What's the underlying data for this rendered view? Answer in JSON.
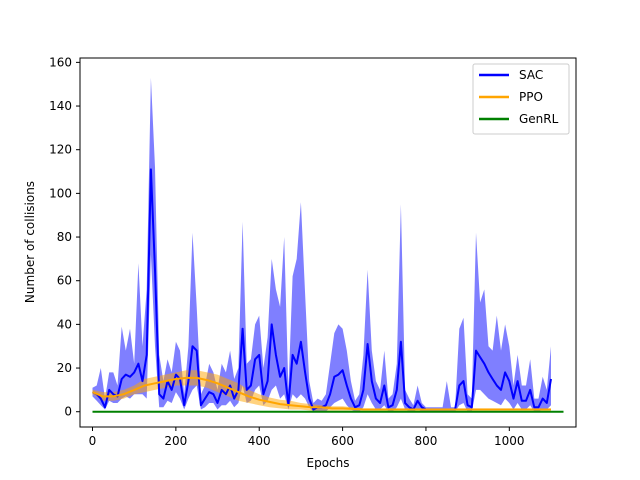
{
  "chart_data": {
    "type": "line",
    "xlabel": "Epochs",
    "ylabel": "Number of collisions",
    "xlim": [
      -30,
      1160
    ],
    "ylim": [
      -7,
      162
    ],
    "xticks": [
      0,
      200,
      400,
      600,
      800,
      1000
    ],
    "yticks": [
      0,
      20,
      40,
      60,
      80,
      100,
      120,
      140,
      160
    ],
    "legend_position": "top-right",
    "grid": false,
    "series": [
      {
        "name": "SAC",
        "color": "#0000ff",
        "band_color": "#0000ff",
        "x": [
          0,
          10,
          20,
          30,
          40,
          50,
          60,
          70,
          80,
          90,
          100,
          110,
          120,
          130,
          140,
          150,
          160,
          170,
          180,
          190,
          200,
          210,
          220,
          230,
          240,
          250,
          260,
          270,
          280,
          290,
          300,
          310,
          320,
          330,
          340,
          350,
          360,
          370,
          380,
          390,
          400,
          410,
          420,
          430,
          440,
          450,
          460,
          470,
          480,
          490,
          500,
          510,
          520,
          530,
          540,
          550,
          560,
          570,
          580,
          590,
          600,
          610,
          620,
          630,
          640,
          650,
          660,
          670,
          680,
          690,
          700,
          710,
          720,
          730,
          740,
          750,
          760,
          770,
          780,
          790,
          800,
          810,
          820,
          830,
          840,
          850,
          860,
          870,
          880,
          890,
          900,
          910,
          920,
          930,
          940,
          950,
          960,
          970,
          980,
          990,
          1000,
          1010,
          1020,
          1030,
          1040,
          1050,
          1060,
          1070,
          1080,
          1090,
          1100
        ],
        "mean": [
          9,
          8,
          6,
          2,
          10,
          8,
          7,
          15,
          17,
          16,
          18,
          22,
          14,
          26,
          111,
          65,
          8,
          6,
          14,
          10,
          17,
          15,
          3,
          14,
          30,
          28,
          3,
          6,
          9,
          8,
          4,
          10,
          8,
          12,
          6,
          10,
          38,
          10,
          12,
          24,
          26,
          8,
          14,
          40,
          26,
          16,
          20,
          3,
          26,
          22,
          32,
          18,
          6,
          1,
          2,
          2,
          3,
          8,
          16,
          17,
          19,
          12,
          6,
          2,
          3,
          10,
          31,
          14,
          6,
          4,
          12,
          2,
          3,
          10,
          32,
          4,
          2,
          1,
          5,
          2,
          1,
          1,
          1,
          1,
          1,
          1,
          1,
          1,
          12,
          14,
          3,
          2,
          28,
          25,
          22,
          18,
          15,
          12,
          10,
          18,
          14,
          6,
          14,
          5,
          5,
          10,
          2,
          2,
          6,
          4,
          15
        ],
        "lower": [
          7,
          5,
          3,
          1,
          5,
          4,
          4,
          6,
          7,
          6,
          8,
          8,
          8,
          6,
          72,
          30,
          2,
          2,
          5,
          4,
          9,
          6,
          1,
          6,
          10,
          12,
          1,
          2,
          4,
          4,
          1,
          3,
          3,
          5,
          2,
          4,
          12,
          4,
          5,
          10,
          12,
          3,
          5,
          10,
          12,
          6,
          8,
          1,
          8,
          6,
          8,
          6,
          2,
          0,
          0,
          0,
          0,
          2,
          4,
          5,
          6,
          3,
          1,
          0,
          0,
          2,
          8,
          4,
          1,
          1,
          3,
          0,
          0,
          2,
          6,
          1,
          0,
          0,
          1,
          0,
          0,
          0,
          0,
          0,
          0,
          0,
          0,
          0,
          3,
          4,
          0,
          0,
          10,
          10,
          8,
          6,
          5,
          4,
          3,
          6,
          4,
          1,
          4,
          1,
          1,
          3,
          0,
          0,
          1,
          1,
          3
        ],
        "upper": [
          11,
          12,
          20,
          6,
          18,
          18,
          12,
          39,
          28,
          38,
          22,
          68,
          30,
          56,
          153,
          112,
          26,
          14,
          24,
          18,
          32,
          28,
          8,
          30,
          82,
          48,
          8,
          12,
          22,
          18,
          10,
          22,
          18,
          28,
          15,
          20,
          87,
          22,
          24,
          40,
          44,
          20,
          34,
          70,
          56,
          48,
          80,
          10,
          62,
          70,
          96,
          54,
          14,
          4,
          6,
          5,
          8,
          22,
          36,
          40,
          38,
          28,
          14,
          5,
          8,
          26,
          65,
          28,
          14,
          10,
          28,
          6,
          8,
          22,
          95,
          10,
          6,
          3,
          12,
          4,
          2,
          2,
          2,
          2,
          2,
          14,
          2,
          2,
          38,
          43,
          8,
          6,
          82,
          50,
          56,
          30,
          28,
          44,
          28,
          40,
          30,
          12,
          26,
          12,
          12,
          24,
          6,
          6,
          16,
          10,
          30
        ]
      },
      {
        "name": "PPO",
        "color": "#ffa500",
        "band_color": "#ffa500",
        "x": [
          0,
          25,
          50,
          75,
          100,
          125,
          150,
          175,
          200,
          225,
          250,
          275,
          300,
          325,
          350,
          375,
          400,
          425,
          450,
          475,
          500,
          525,
          550,
          575,
          600,
          650,
          700,
          750,
          800,
          850,
          900,
          950,
          1000,
          1050,
          1100
        ],
        "mean": [
          9,
          7,
          7,
          8,
          10,
          12,
          13,
          14,
          15,
          15.5,
          15.5,
          14.5,
          13,
          11,
          9,
          7,
          5.5,
          4.5,
          3.5,
          3,
          2.5,
          2,
          2,
          1.5,
          1.5,
          1,
          1,
          1,
          1,
          1,
          1,
          1,
          1,
          1,
          1
        ],
        "lower": [
          8,
          5,
          5,
          6,
          8,
          9,
          10,
          11,
          12,
          12,
          12,
          11,
          9,
          7,
          5,
          4,
          3,
          2,
          1.5,
          1,
          1,
          0.5,
          0.5,
          0.5,
          0.5,
          0.5,
          0.5,
          0.5,
          0.5,
          0.5,
          0.5,
          0.5,
          0.5,
          0.5,
          0.5
        ],
        "upper": [
          10,
          9,
          9,
          10,
          12,
          15,
          16,
          17,
          18,
          19,
          19,
          18,
          17,
          15,
          13,
          10,
          8,
          6.5,
          5.5,
          5,
          4,
          3.5,
          3,
          2.5,
          2.5,
          1.5,
          1.5,
          1.5,
          1.5,
          1.5,
          1.5,
          1.5,
          1.5,
          1.5,
          1.5
        ]
      },
      {
        "name": "GenRL",
        "color": "#008000",
        "x": [
          0,
          1130
        ],
        "mean": [
          0,
          0
        ]
      }
    ]
  }
}
